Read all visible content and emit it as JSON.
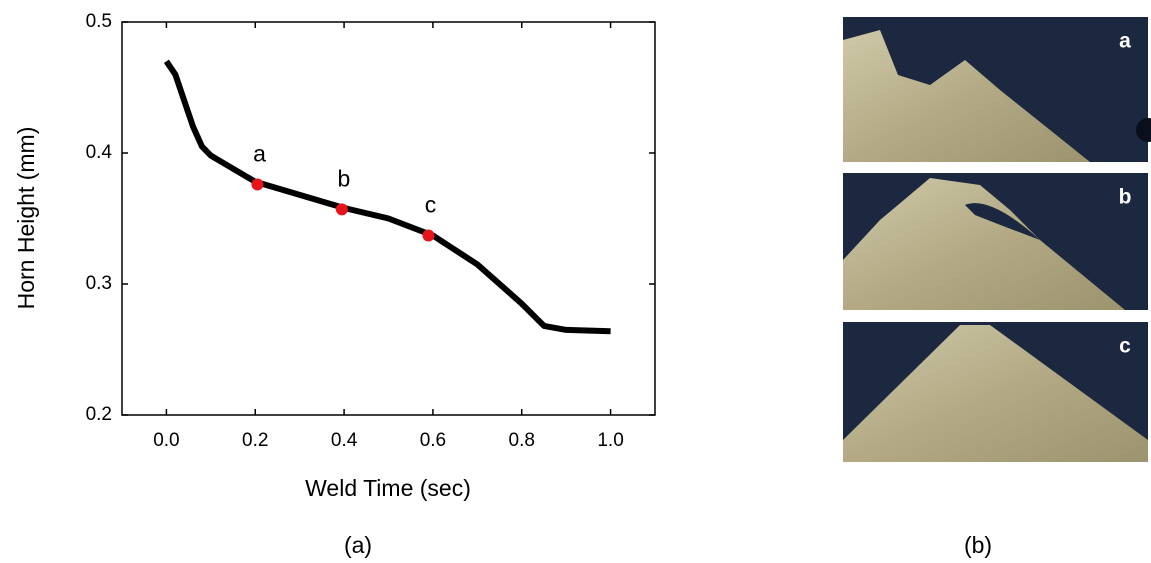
{
  "chart_data": {
    "type": "line",
    "xlabel": "Weld Time (sec)",
    "ylabel": "Horn Height (mm)",
    "x": [
      0,
      0.02,
      0.04,
      0.06,
      0.08,
      0.1,
      0.15,
      0.2,
      0.3,
      0.4,
      0.5,
      0.6,
      0.7,
      0.8,
      0.85,
      0.9,
      1.0
    ],
    "values": [
      0.47,
      0.46,
      0.44,
      0.42,
      0.405,
      0.398,
      0.388,
      0.378,
      0.368,
      0.358,
      0.35,
      0.337,
      0.315,
      0.285,
      0.268,
      0.265,
      0.264
    ],
    "color": "#000000",
    "markers": {
      "x": [
        0.205,
        0.395,
        0.59
      ],
      "values": [
        0.376,
        0.357,
        0.337
      ],
      "labels": [
        "a",
        "b",
        "c"
      ],
      "color": "#e8141c"
    },
    "xlim": [
      -0.1,
      1.1
    ],
    "ylim": [
      0.2,
      0.5
    ],
    "xticks": [
      {
        "value": 0,
        "label": "0.0"
      },
      0.2,
      0.4,
      0.6,
      0.8,
      {
        "value": 1,
        "label": "1.0"
      }
    ],
    "yticks": [
      0.2,
      0.3,
      0.4,
      0.5
    ]
  },
  "micrographs": {
    "labels": [
      "a",
      "b",
      "c"
    ]
  },
  "captions": [
    "(a)",
    "(b)"
  ]
}
